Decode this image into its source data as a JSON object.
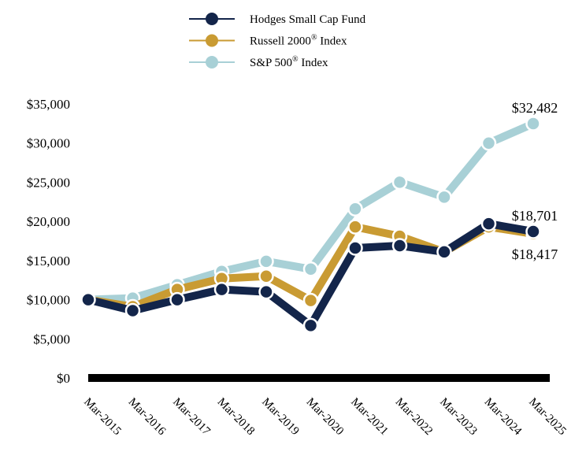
{
  "chart_data": {
    "type": "line",
    "title": "",
    "xlabel": "",
    "ylabel": "",
    "categories": [
      "Mar-2015",
      "Mar-2016",
      "Mar-2017",
      "Mar-2018",
      "Mar-2019",
      "Mar-2020",
      "Mar-2021",
      "Mar-2022",
      "Mar-2023",
      "Mar-2024",
      "Mar-2025"
    ],
    "ylim": [
      0,
      35000
    ],
    "yticks": [
      0,
      5000,
      10000,
      15000,
      20000,
      25000,
      30000,
      35000
    ],
    "ytick_labels": [
      "$0",
      "$5,000",
      "$10,000",
      "$15,000",
      "$20,000",
      "$25,000",
      "$30,000",
      "$35,000"
    ],
    "grid": false,
    "legend_position": "top-center",
    "series": [
      {
        "key": "sp500",
        "name": "S&P 500",
        "superscript": "®",
        "name_suffix": " Index",
        "color": "#a8d0d6",
        "values": [
          10000,
          10200,
          11900,
          13600,
          14900,
          13900,
          21600,
          25000,
          23100,
          30000,
          32482
        ]
      },
      {
        "key": "russell",
        "name": "Russell 2000",
        "superscript": "®",
        "name_suffix": " Index",
        "color": "#c99b33",
        "values": [
          10000,
          9100,
          11300,
          12700,
          13000,
          9900,
          19300,
          18100,
          16100,
          19300,
          18417
        ]
      },
      {
        "key": "hodges",
        "name": "Hodges Small Cap Fund",
        "superscript": "",
        "name_suffix": "",
        "color": "#13254a",
        "values": [
          10000,
          8600,
          10000,
          11300,
          11000,
          6700,
          16600,
          16900,
          16100,
          19700,
          18701
        ]
      }
    ],
    "legend_order": [
      "hodges",
      "russell",
      "sp500"
    ],
    "end_labels": [
      {
        "series": "sp500",
        "text": "$32,482"
      },
      {
        "series": "hodges",
        "text": "$18,701"
      },
      {
        "series": "russell",
        "text": "$18,417"
      }
    ]
  }
}
